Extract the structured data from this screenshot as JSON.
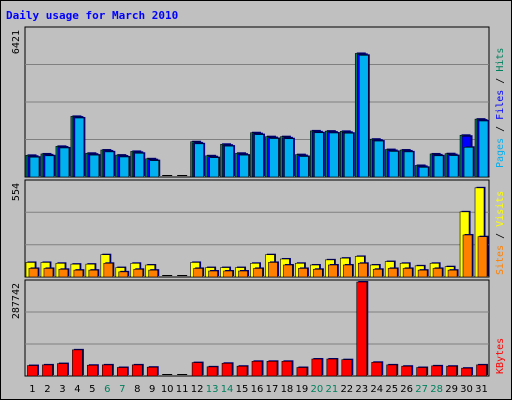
{
  "chart_data": [
    {
      "type": "bar",
      "title": "Daily usage for March 2010",
      "panel": "top",
      "ymax_label": "6421",
      "ylim": [
        0,
        6421
      ],
      "categories": [
        "1",
        "2",
        "3",
        "4",
        "5",
        "6",
        "7",
        "8",
        "9",
        "10",
        "11",
        "12",
        "13",
        "14",
        "15",
        "16",
        "17",
        "18",
        "19",
        "20",
        "21",
        "22",
        "23",
        "24",
        "25",
        "26",
        "27",
        "28",
        "29",
        "30",
        "31"
      ],
      "side_label": {
        "parts": [
          "Pages",
          "Files",
          "Hits"
        ],
        "separator": " / "
      },
      "series": [
        {
          "name": "Hits",
          "color": "#00805c",
          "values": [
            940,
            1000,
            1330,
            2630,
            1030,
            1170,
            950,
            1110,
            790,
            0,
            0,
            1530,
            920,
            1420,
            1030,
            1920,
            1750,
            1750,
            970,
            2000,
            1990,
            1980,
            5360,
            1640,
            1190,
            1170,
            500,
            1000,
            1010,
            1810,
            2510
          ]
        },
        {
          "name": "Files",
          "color": "#0000ff",
          "values": [
            900,
            960,
            1300,
            2600,
            990,
            1130,
            910,
            1070,
            750,
            0,
            0,
            1480,
            880,
            1380,
            990,
            1880,
            1710,
            1700,
            930,
            1960,
            1950,
            1940,
            5320,
            1600,
            1150,
            1130,
            460,
            960,
            970,
            1770,
            2470
          ]
        },
        {
          "name": "Pages",
          "color": "#00b0f0",
          "values": [
            860,
            920,
            1260,
            2560,
            950,
            1090,
            870,
            1030,
            710,
            0,
            0,
            1440,
            840,
            1340,
            950,
            1840,
            1670,
            1660,
            890,
            1920,
            1910,
            1900,
            5280,
            1560,
            1110,
            1090,
            420,
            920,
            930,
            1290,
            2430
          ]
        }
      ],
      "weekend_days": [
        "6",
        "7",
        "13",
        "14",
        "20",
        "21",
        "27",
        "28"
      ]
    },
    {
      "type": "bar",
      "panel": "middle",
      "ymax_label": "554",
      "ylim": [
        0,
        554
      ],
      "side_label": {
        "parts": [
          "Sites",
          "Visits"
        ],
        "separator": " / "
      },
      "series": [
        {
          "name": "Visits",
          "color": "#ffff00",
          "values": [
            85,
            85,
            80,
            75,
            75,
            130,
            55,
            80,
            70,
            0,
            0,
            85,
            55,
            55,
            55,
            80,
            130,
            105,
            80,
            70,
            100,
            110,
            120,
            70,
            90,
            80,
            65,
            80,
            60,
            380,
            520
          ]
        },
        {
          "name": "Sites",
          "color": "#ff8000",
          "values": [
            50,
            50,
            45,
            40,
            40,
            80,
            30,
            45,
            40,
            0,
            0,
            50,
            35,
            35,
            35,
            50,
            85,
            70,
            50,
            45,
            70,
            70,
            80,
            45,
            50,
            50,
            40,
            50,
            40,
            245,
            235
          ]
        }
      ]
    },
    {
      "type": "bar",
      "panel": "bottom",
      "ymax_label": "287742",
      "ylim": [
        0,
        287742
      ],
      "side_label": {
        "parts": [
          "KBytes"
        ],
        "separator": ""
      },
      "series": [
        {
          "name": "KBytes",
          "color": "#ff0000",
          "values": [
            32000,
            34000,
            38000,
            80000,
            33000,
            34000,
            26000,
            34000,
            27000,
            0,
            0,
            41000,
            28000,
            39000,
            30000,
            45000,
            45000,
            45000,
            26000,
            52000,
            52000,
            50000,
            287742,
            42000,
            34000,
            30000,
            26000,
            31000,
            30000,
            24000,
            34000
          ]
        }
      ]
    }
  ],
  "colors": {
    "background": "#c0c0c0",
    "title": "#0000ff",
    "weekday_label": "#000000",
    "weekend_label": "#00805c",
    "grid": "#808080"
  }
}
